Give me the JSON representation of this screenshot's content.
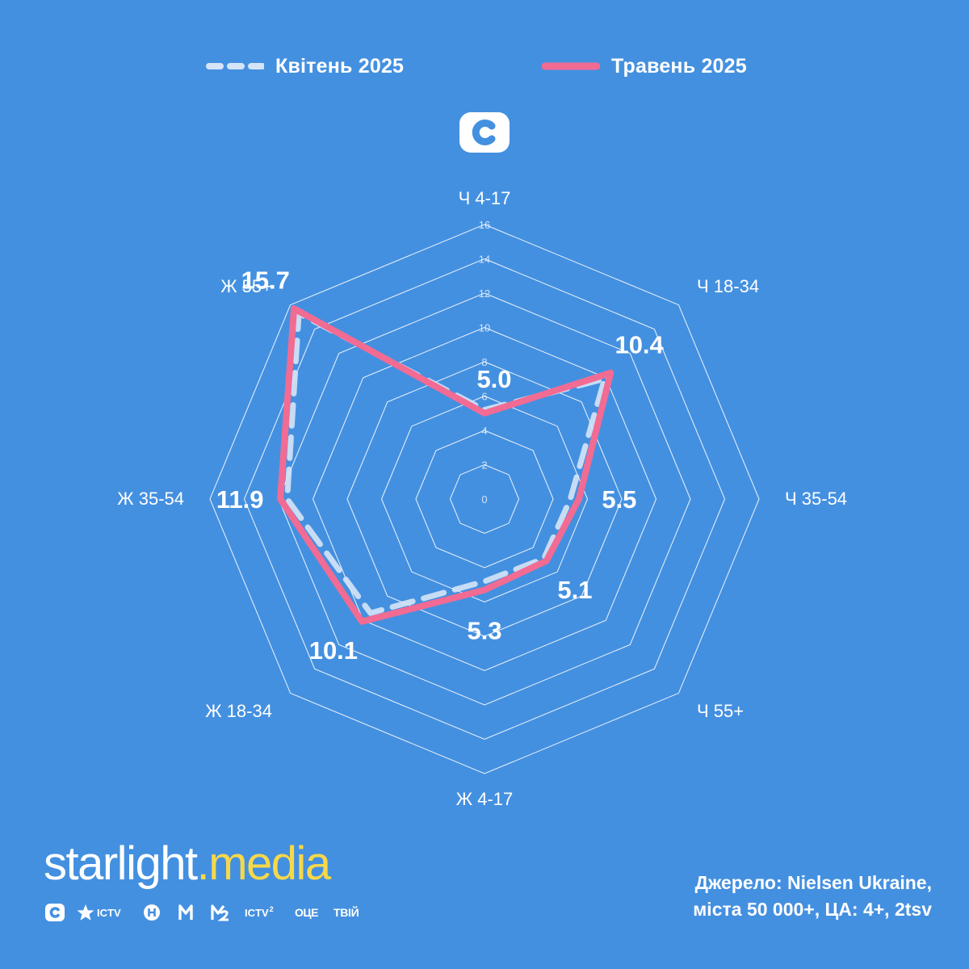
{
  "legend": {
    "april_label": "Квітень 2025",
    "may_label": "Травень 2025"
  },
  "colors": {
    "background": "#4490e0",
    "april": "#d6e4f7",
    "may": "#f26b93",
    "grid": "#ffffff",
    "brand_accent": "#f6d84a"
  },
  "channel_logo": {
    "icon": "stb-c-logo-icon"
  },
  "chart_data": {
    "type": "radar",
    "axes": [
      "Ч 4-17",
      "Ч 18-34",
      "Ч 35-54",
      "Ч 55+",
      "Ж 4-17",
      "Ж 18-34",
      "Ж 35-54",
      "Ж 55+"
    ],
    "scale_ticks": [
      "0",
      "2",
      "4",
      "6",
      "8",
      "10",
      "12",
      "14",
      "16"
    ],
    "range": [
      0,
      16
    ],
    "grid": true,
    "legend_position": "top",
    "series": [
      {
        "name": "Квітень 2025",
        "style": "dashed",
        "values": [
          5.2,
          9.9,
          5.0,
          4.9,
          4.8,
          9.4,
          11.5,
          15.3
        ]
      },
      {
        "name": "Травень 2025",
        "style": "solid",
        "values": [
          5.0,
          10.4,
          5.5,
          5.1,
          5.3,
          10.1,
          11.9,
          15.7
        ],
        "labels": [
          "5.0",
          "10.4",
          "5.5",
          "5.1",
          "5.3",
          "10.1",
          "11.9",
          "15.7"
        ]
      }
    ]
  },
  "brand": {
    "part1": "starlight",
    "part2": ".media"
  },
  "channels": [
    "СТБ",
    "ICTV",
    "Н",
    "М1",
    "М2",
    "ICTV2",
    "ОЦЕ",
    "ТВІЙ"
  ],
  "source": {
    "line1": "Джерело: Nielsen Ukraine,",
    "line2": "міста 50 000+, ЦА: 4+, 2tsv"
  }
}
